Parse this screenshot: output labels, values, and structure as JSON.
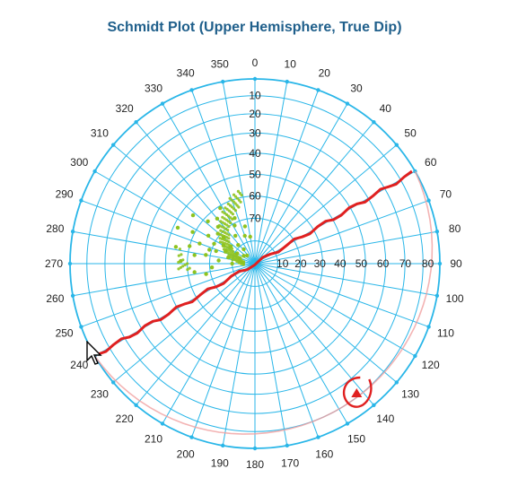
{
  "chart_data": {
    "type": "scatter",
    "title": "Schmidt Plot (Upper Hemisphere, True Dip)",
    "projection": "schmidt",
    "hemisphere": "upper",
    "azimuth_ticks": [
      0,
      10,
      20,
      30,
      40,
      50,
      60,
      70,
      80,
      90,
      100,
      110,
      120,
      130,
      140,
      150,
      160,
      170,
      180,
      190,
      200,
      210,
      220,
      230,
      240,
      250,
      260,
      270,
      280,
      290,
      300,
      310,
      320,
      330,
      340,
      350
    ],
    "dip_ticks_north": [
      10,
      20,
      30,
      40,
      50,
      60,
      70
    ],
    "dip_ticks_east": [
      10,
      20,
      30,
      40,
      50,
      60,
      70,
      80
    ],
    "grid": true,
    "colors": {
      "grid": "#29b6e8",
      "points": "#8fc31f",
      "annotation": "#e02020",
      "great_circle": "#f0a0a0",
      "title": "#1f5f8b"
    },
    "pole_cluster": {
      "center_azimuth": 300,
      "center_dip": 15,
      "points": [
        {
          "az": 283,
          "dip": 12
        },
        {
          "az": 293,
          "dip": 14
        },
        {
          "az": 305,
          "dip": 13
        },
        {
          "az": 318,
          "dip": 11
        },
        {
          "az": 296,
          "dip": 20
        },
        {
          "az": 310,
          "dip": 18
        },
        {
          "az": 325,
          "dip": 15
        },
        {
          "az": 288,
          "dip": 18
        },
        {
          "az": 301,
          "dip": 24
        },
        {
          "az": 280,
          "dip": 22
        },
        {
          "az": 315,
          "dip": 23
        },
        {
          "az": 332,
          "dip": 19
        },
        {
          "az": 275,
          "dip": 16
        },
        {
          "az": 290,
          "dip": 26
        },
        {
          "az": 340,
          "dip": 13
        },
        {
          "az": 300,
          "dip": 9
        },
        {
          "az": 285,
          "dip": 30
        },
        {
          "az": 312,
          "dip": 28
        },
        {
          "az": 270,
          "dip": 10
        },
        {
          "az": 322,
          "dip": 8
        },
        {
          "az": 278,
          "dip": 27
        },
        {
          "az": 297,
          "dip": 31
        },
        {
          "az": 336,
          "dip": 22
        },
        {
          "az": 265,
          "dip": 19
        },
        {
          "az": 305,
          "dip": 6
        },
        {
          "az": 290,
          "dip": 7
        },
        {
          "az": 345,
          "dip": 17
        },
        {
          "az": 272,
          "dip": 33
        },
        {
          "az": 308,
          "dip": 35
        },
        {
          "az": 262,
          "dip": 27
        },
        {
          "az": 295,
          "dip": 38
        },
        {
          "az": 350,
          "dip": 12
        },
        {
          "az": 282,
          "dip": 36
        },
        {
          "az": 328,
          "dip": 29
        },
        {
          "az": 258,
          "dip": 22
        },
        {
          "az": 316,
          "dip": 5
        },
        {
          "az": 300,
          "dip": 16
        },
        {
          "az": 287,
          "dip": 21
        },
        {
          "az": 309,
          "dip": 21
        },
        {
          "az": 320,
          "dip": 26
        }
      ]
    },
    "great_circle": {
      "strike": 60,
      "dip": 10
    },
    "annotation_line": {
      "from_azimuth": 240,
      "to_azimuth": 60
    }
  }
}
